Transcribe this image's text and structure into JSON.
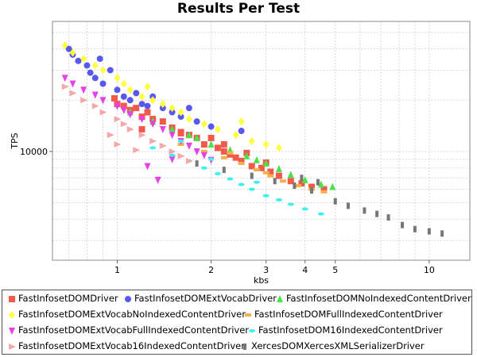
{
  "chart_data": {
    "type": "scatter",
    "title": "Results Per Test",
    "xlabel": "kbs",
    "ylabel": "TPS",
    "x_scale": "log",
    "y_scale": "log",
    "xlim": [
      0.62,
      13.5
    ],
    "ylim": [
      2300,
      58000
    ],
    "grid": true,
    "legend_position": "bottom",
    "x_tick_labels": [
      "1",
      "2",
      "3",
      "4",
      "5",
      "10"
    ],
    "x_ticks": [
      1,
      2,
      3,
      4,
      5,
      10
    ],
    "y_tick_labels": [
      "10000"
    ],
    "y_ticks": [
      10000
    ],
    "series": [
      {
        "name": "FastInfosetDOMDriver",
        "color": "#f15a4a",
        "marker": "square",
        "points": [
          [
            0.98,
            20500
          ],
          [
            1.0,
            19000
          ],
          [
            1.05,
            18500
          ],
          [
            1.1,
            17500
          ],
          [
            1.15,
            18000
          ],
          [
            1.2,
            16000
          ],
          [
            1.25,
            17000
          ],
          [
            1.3,
            15500
          ],
          [
            1.4,
            15000
          ],
          [
            1.5,
            13800
          ],
          [
            1.6,
            13000
          ],
          [
            1.7,
            12500
          ],
          [
            1.8,
            12000
          ],
          [
            1.9,
            11000
          ],
          [
            2.0,
            12000
          ],
          [
            2.1,
            10500
          ],
          [
            2.2,
            10000
          ],
          [
            2.3,
            9600
          ],
          [
            2.4,
            9200
          ],
          [
            2.5,
            8800
          ],
          [
            2.7,
            8200
          ],
          [
            2.9,
            8000
          ],
          [
            3.1,
            7600
          ],
          [
            3.3,
            7200
          ],
          [
            3.6,
            6700
          ],
          [
            3.9,
            6500
          ],
          [
            4.2,
            6200
          ],
          [
            4.6,
            6000
          ],
          [
            1.2,
            13500
          ],
          [
            1.6,
            12800
          ],
          [
            2.2,
            11000
          ],
          [
            2.6,
            9800
          ],
          [
            3.0,
            8600
          ]
        ]
      },
      {
        "name": "FastInfosetDOMExtVocabDriver",
        "color": "#5858ee",
        "marker": "circle",
        "points": [
          [
            0.7,
            40000
          ],
          [
            0.72,
            37000
          ],
          [
            0.75,
            34000
          ],
          [
            0.8,
            32000
          ],
          [
            0.82,
            29000
          ],
          [
            0.85,
            27000
          ],
          [
            0.9,
            25000
          ],
          [
            0.95,
            30000
          ],
          [
            1.0,
            23000
          ],
          [
            1.05,
            21000
          ],
          [
            1.1,
            20000
          ],
          [
            1.15,
            22000
          ],
          [
            1.2,
            19000
          ],
          [
            1.25,
            18500
          ],
          [
            1.3,
            21000
          ],
          [
            1.4,
            18000
          ],
          [
            1.5,
            17000
          ],
          [
            1.6,
            16000
          ],
          [
            1.7,
            18000
          ],
          [
            1.8,
            15000
          ],
          [
            2.0,
            14000
          ],
          [
            2.5,
            13200
          ],
          [
            0.88,
            35000
          ]
        ]
      },
      {
        "name": "FastInfosetDOMNoIndexedContentDriver",
        "color": "#4ce04c",
        "marker": "triangle-up",
        "points": [
          [
            1.1,
            17000
          ],
          [
            1.3,
            15000
          ],
          [
            1.5,
            13500
          ],
          [
            1.8,
            12000
          ],
          [
            2.0,
            11000
          ],
          [
            2.3,
            10200
          ],
          [
            2.6,
            9400
          ],
          [
            3.0,
            8500
          ],
          [
            3.3,
            7900
          ],
          [
            3.6,
            7300
          ],
          [
            4.0,
            6800
          ],
          [
            4.5,
            6400
          ],
          [
            4.9,
            6200
          ],
          [
            2.8,
            8900
          ],
          [
            1.7,
            12500
          ]
        ]
      },
      {
        "name": "FastInfosetDOMExtVocabNoIndexedContentDriver",
        "color": "#ffff40",
        "marker": "diamond",
        "points": [
          [
            0.68,
            42000
          ],
          [
            0.72,
            38000
          ],
          [
            0.78,
            35000
          ],
          [
            0.85,
            32000
          ],
          [
            0.9,
            30000
          ],
          [
            1.0,
            27000
          ],
          [
            1.05,
            25000
          ],
          [
            1.1,
            23000
          ],
          [
            1.2,
            21000
          ],
          [
            1.3,
            20000
          ],
          [
            1.4,
            19000
          ],
          [
            1.5,
            18000
          ],
          [
            1.6,
            17000
          ],
          [
            1.7,
            15500
          ],
          [
            1.9,
            14500
          ],
          [
            2.1,
            13500
          ],
          [
            2.4,
            12500
          ],
          [
            2.7,
            11500
          ],
          [
            3.0,
            11000
          ],
          [
            3.3,
            10500
          ],
          [
            2.5,
            15000
          ],
          [
            1.25,
            24000
          ]
        ]
      },
      {
        "name": "FastInfosetDOMFullIndexedContentDriver",
        "color": "#f4b04a",
        "marker": "rect",
        "points": [
          [
            1.6,
            11000
          ],
          [
            1.9,
            10000
          ],
          [
            2.2,
            9200
          ],
          [
            2.5,
            8500
          ],
          [
            2.8,
            7800
          ],
          [
            3.1,
            7200
          ],
          [
            3.4,
            6700
          ],
          [
            3.8,
            6300
          ],
          [
            4.2,
            6000
          ],
          [
            4.6,
            5800
          ],
          [
            2.3,
            9800
          ],
          [
            3.0,
            7500
          ]
        ]
      },
      {
        "name": "FastInfosetDOMExtVocabFullIndexedContentDriver",
        "color": "#e840e8",
        "marker": "triangle-down",
        "points": [
          [
            0.68,
            27000
          ],
          [
            0.72,
            25000
          ],
          [
            0.78,
            23000
          ],
          [
            0.85,
            21500
          ],
          [
            0.9,
            20000
          ],
          [
            1.0,
            18500
          ],
          [
            1.05,
            17500
          ],
          [
            1.1,
            16500
          ],
          [
            1.2,
            15500
          ],
          [
            1.3,
            14500
          ],
          [
            1.4,
            13500
          ],
          [
            1.5,
            12500
          ],
          [
            1.6,
            11500
          ],
          [
            1.7,
            10800
          ],
          [
            1.8,
            10000
          ],
          [
            1.9,
            9500
          ],
          [
            1.25,
            8200
          ],
          [
            1.35,
            6800
          ],
          [
            1.5,
            9000
          ],
          [
            2.0,
            8900
          ]
        ]
      },
      {
        "name": "FastInfosetDOM16IndexedContentDriver",
        "color": "#40f0f0",
        "marker": "ellipse",
        "points": [
          [
            1.3,
            10500
          ],
          [
            1.5,
            9500
          ],
          [
            1.7,
            8800
          ],
          [
            1.9,
            8000
          ],
          [
            2.1,
            7400
          ],
          [
            2.3,
            6900
          ],
          [
            2.5,
            6400
          ],
          [
            2.7,
            6000
          ],
          [
            3.0,
            5500
          ],
          [
            3.3,
            5200
          ],
          [
            3.6,
            4900
          ],
          [
            4.0,
            4600
          ],
          [
            4.5,
            4300
          ],
          [
            1.6,
            11500
          ],
          [
            2.0,
            9000
          ],
          [
            2.8,
            6600
          ]
        ]
      },
      {
        "name": "FastInfosetDOMExtVocab16IndexedContentDriver",
        "color": "#f4a8a8",
        "marker": "triangle-right",
        "points": [
          [
            0.68,
            24000
          ],
          [
            0.72,
            22000
          ],
          [
            0.78,
            20000
          ],
          [
            0.85,
            18500
          ],
          [
            0.9,
            17000
          ],
          [
            1.0,
            15500
          ],
          [
            1.05,
            14500
          ],
          [
            1.1,
            13500
          ],
          [
            1.2,
            12500
          ],
          [
            1.3,
            11500
          ],
          [
            1.4,
            10800
          ],
          [
            1.5,
            10000
          ],
          [
            1.6,
            9400
          ],
          [
            1.7,
            8800
          ],
          [
            0.95,
            12500
          ],
          [
            1.0,
            11000
          ],
          [
            1.15,
            10200
          ]
        ]
      },
      {
        "name": "XercesDOMXercesXMLSerializerDriver",
        "color": "#777777",
        "marker": "bar",
        "points": [
          [
            1.8,
            8500
          ],
          [
            2.2,
            7800
          ],
          [
            2.7,
            7200
          ],
          [
            3.2,
            6700
          ],
          [
            3.7,
            6300
          ],
          [
            4.2,
            5900
          ],
          [
            5.0,
            5100
          ],
          [
            5.5,
            4800
          ],
          [
            6.2,
            4500
          ],
          [
            6.8,
            4300
          ],
          [
            7.4,
            4100
          ],
          [
            8.2,
            3700
          ],
          [
            9.0,
            3500
          ],
          [
            10.0,
            3400
          ],
          [
            11.0,
            3300
          ],
          [
            3.9,
            7000
          ],
          [
            4.4,
            6600
          ]
        ]
      }
    ]
  },
  "legend": {
    "items": [
      {
        "label": "FastInfosetDOMDriver"
      },
      {
        "label": "FastInfosetDOMExtVocabDriver"
      },
      {
        "label": "FastInfosetDOMNoIndexedContentDriver"
      },
      {
        "label": "FastInfosetDOMExtVocabNoIndexedContentDriver"
      },
      {
        "label": "FastInfosetDOMFullIndexedContentDriver"
      },
      {
        "label": "FastInfosetDOMExtVocabFullIndexedContentDriver"
      },
      {
        "label": "FastInfosetDOM16IndexedContentDriver"
      },
      {
        "label": "FastInfosetDOMExtVocab16IndexedContentDriver"
      },
      {
        "label": "XercesDOMXercesXMLSerializerDriver"
      }
    ]
  }
}
